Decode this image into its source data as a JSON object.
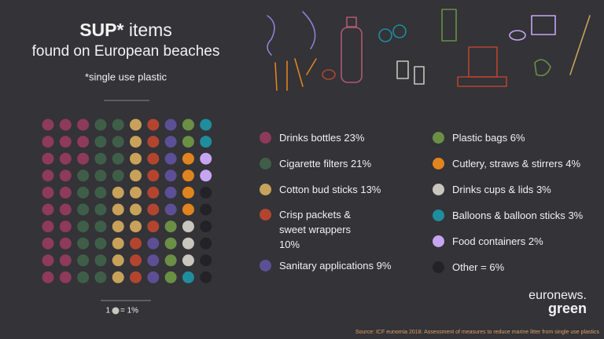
{
  "chart_data": {
    "type": "waffle",
    "title_bold": "SUP*",
    "title_rest": "items",
    "subtitle": "found on European beaches",
    "note": "*single use plastic",
    "key_label": "= 1%",
    "key_count": "1",
    "categories": [
      "Drinks bottles",
      "Cigarette filters",
      "Cotton bud sticks",
      "Crisp packets & sweet wrappers",
      "Sanitary applications",
      "Plastic bags",
      "Cutlery, straws & stirrers",
      "Drinks cups & lids",
      "Balloons & balloon sticks",
      "Food containers",
      "Other"
    ],
    "values": [
      23,
      21,
      13,
      10,
      9,
      6,
      4,
      3,
      3,
      2,
      6
    ],
    "value_labels": [
      "23%",
      "21%",
      "13%",
      "10%",
      "9%",
      "6%",
      "4%",
      "3%",
      "3%",
      "2%",
      "= 6%"
    ],
    "colors": [
      "#8e3a5a",
      "#3f5e48",
      "#c8a25a",
      "#b3452f",
      "#5c4f95",
      "#6b8f45",
      "#e0841f",
      "#c9c6bd",
      "#1f8d9d",
      "#c8a5f0",
      "#232327"
    ],
    "brand": "euronews.",
    "brand_sub": "green",
    "source": "Source: ICF eunomia 2018: Assessment of measures to reduce marine litter from single use plastics"
  }
}
